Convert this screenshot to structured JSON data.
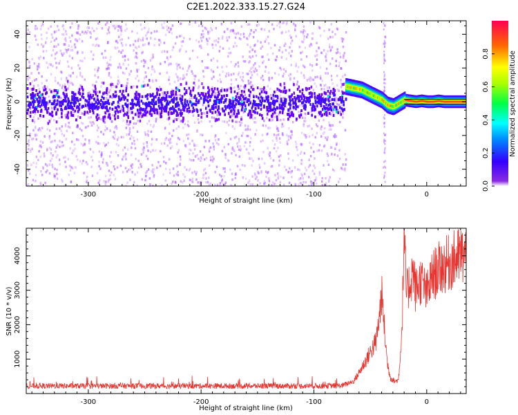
{
  "figure_title": "C2E1.2022.333.15.27.G24",
  "colors": {
    "snr_line": "#e8342f",
    "frame": "#000000",
    "background": "#ffffff"
  },
  "chart_data": [
    {
      "type": "heatmap",
      "name": "spectrogram",
      "title": "C2E1.2022.333.15.27.G24",
      "xlabel": "Height of straight line (km)",
      "ylabel": "Frequency (Hz)",
      "xlim": [
        -355,
        35
      ],
      "ylim": [
        -50,
        48
      ],
      "xticks": [
        -300,
        -200,
        -100,
        0
      ],
      "xtick_labels": [
        "-300",
        "-200",
        "-100",
        "0"
      ],
      "yticks": [
        -40,
        -20,
        0,
        20,
        40
      ],
      "ytick_labels": [
        "-40",
        "-20",
        "0",
        "20",
        "40"
      ],
      "noise_region_x": [
        -355,
        -72
      ],
      "noise_core_halfwidth_hz": 12,
      "colorbar": {
        "label": "Normalized spectral amplitude",
        "range": [
          0,
          1
        ],
        "ticks": [
          0.0,
          0.2,
          0.4,
          0.6,
          0.8
        ],
        "tick_labels": [
          "0.0",
          "0.2",
          "0.4",
          "0.6",
          "0.8"
        ],
        "colormap": "hsv-rainbow (purple to red)"
      },
      "signal_trace": {
        "x": [
          -72,
          -65,
          -58,
          -52,
          -46,
          -40,
          -35,
          -30,
          -25,
          -20,
          -15,
          -10,
          -5,
          0,
          5,
          10,
          15,
          20,
          25,
          35
        ],
        "freq": [
          9,
          8,
          7,
          5,
          3,
          1,
          -2,
          -3,
          -1,
          1,
          0.5,
          0,
          0.5,
          0,
          0,
          0.5,
          0,
          0,
          0,
          0
        ]
      }
    },
    {
      "type": "line",
      "name": "snr",
      "xlabel": "Height of straight line (km)",
      "ylabel": "SNR (10 * v/v)",
      "xlim": [
        -355,
        35
      ],
      "ylim": [
        0,
        4800
      ],
      "xticks": [
        -300,
        -200,
        -100,
        0
      ],
      "xtick_labels": [
        "-300",
        "-200",
        "-100",
        "0"
      ],
      "yticks": [
        1000,
        2000,
        3000,
        4000
      ],
      "ytick_labels": [
        "1000",
        "2000",
        "3000",
        "4000"
      ],
      "series": [
        {
          "name": "SNR",
          "color": "#e8342f",
          "x": [
            -355,
            -300,
            -200,
            -100,
            -75,
            -65,
            -60,
            -55,
            -50,
            -45,
            -42,
            -40,
            -37,
            -35,
            -32,
            -28,
            -25,
            -22,
            -20,
            -18,
            -15,
            -12,
            -10,
            -5,
            0,
            5,
            10,
            15,
            20,
            25,
            30,
            35
          ],
          "y": [
            220,
            220,
            220,
            220,
            230,
            350,
            600,
            900,
            1200,
            1500,
            2200,
            2900,
            1700,
            900,
            450,
            350,
            400,
            1800,
            4600,
            2900,
            3200,
            3600,
            3000,
            3300,
            2900,
            3400,
            3600,
            3700,
            3800,
            3900,
            4000,
            4000
          ]
        }
      ]
    }
  ]
}
